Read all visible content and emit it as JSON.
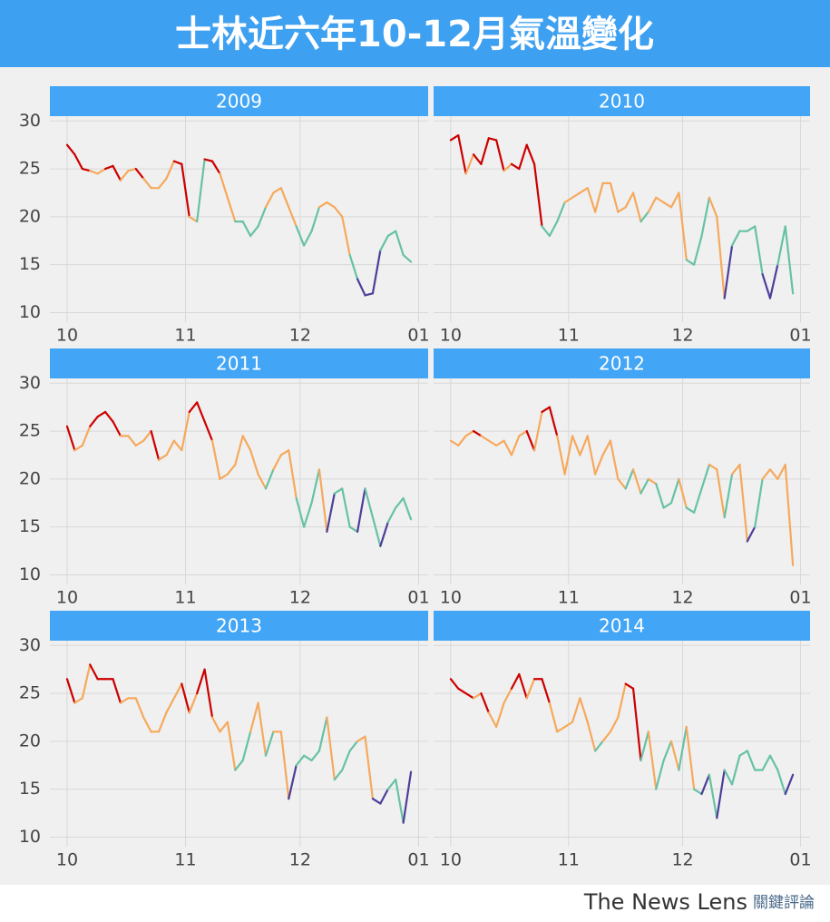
{
  "header": {
    "title": "士林近六年10-12月氣溫變化"
  },
  "footer": {
    "brand": "The News Lens",
    "brand_zh": "關鍵評論"
  },
  "chart_data": [
    {
      "type": "line",
      "title": "2009",
      "x": [
        0,
        2,
        4,
        6,
        8,
        10,
        12,
        14,
        16,
        18,
        20,
        22,
        24,
        26,
        28,
        30,
        32,
        34,
        36,
        38,
        40,
        42,
        44,
        46,
        48,
        50,
        52,
        54,
        56,
        58,
        60,
        62,
        64,
        66,
        68,
        70,
        72,
        74,
        76,
        78,
        80,
        82,
        84,
        86,
        88,
        90
      ],
      "values": [
        27.5,
        26.5,
        25,
        24.8,
        24.5,
        25,
        25.3,
        23.8,
        24.8,
        25,
        24,
        23,
        23,
        24,
        25.8,
        25.5,
        20,
        19.5,
        26,
        25.8,
        24.5,
        22,
        19.5,
        19.5,
        18,
        19,
        21,
        22.5,
        23,
        21,
        19,
        17,
        18.5,
        21,
        21.5,
        21,
        20,
        16,
        13.5,
        11.8,
        12,
        16.5,
        18,
        18.5,
        16,
        15.3
      ],
      "xlim": [
        -4.5,
        94.5
      ],
      "ylim": [
        9,
        30.5
      ],
      "xticks": [
        {
          "value": 0,
          "label": "10"
        },
        {
          "value": 31,
          "label": "11"
        },
        {
          "value": 61,
          "label": "12"
        },
        {
          "value": 92,
          "label": "01"
        }
      ],
      "yticks": [
        10,
        15,
        20,
        25,
        30
      ],
      "color_bands": {
        "thresholds": [
          15,
          20,
          25
        ],
        "colors": [
          "#4b3f9a",
          "#66c2a5",
          "#f6a95c",
          "#cc0000"
        ]
      }
    },
    {
      "type": "line",
      "title": "2010",
      "x": [
        0,
        2,
        4,
        6,
        8,
        10,
        12,
        14,
        16,
        18,
        20,
        22,
        24,
        26,
        28,
        30,
        32,
        34,
        36,
        38,
        40,
        42,
        44,
        46,
        48,
        50,
        52,
        54,
        56,
        58,
        60,
        62,
        64,
        66,
        68,
        70,
        72,
        74,
        76,
        78,
        80,
        82,
        84,
        86,
        88,
        90
      ],
      "values": [
        28,
        28.5,
        24.5,
        26.5,
        25.5,
        28.2,
        28,
        24.8,
        25.5,
        25,
        27.5,
        25.5,
        19,
        18,
        19.5,
        21.5,
        22,
        22.5,
        23,
        20.5,
        23.5,
        23.5,
        20.5,
        21,
        22.5,
        19.5,
        20.5,
        22,
        21.5,
        21,
        22.5,
        15.5,
        15,
        18,
        22,
        20,
        11.5,
        17,
        18.5,
        18.5,
        19,
        14,
        11.5,
        15,
        19,
        12
      ],
      "xlim": [
        -4.5,
        94.5
      ],
      "ylim": [
        9,
        30.5
      ],
      "xticks": [
        {
          "value": 0,
          "label": "10"
        },
        {
          "value": 31,
          "label": "11"
        },
        {
          "value": 61,
          "label": "12"
        },
        {
          "value": 92,
          "label": "01"
        }
      ],
      "yticks": [
        10,
        15,
        20,
        25,
        30
      ],
      "color_bands": {
        "thresholds": [
          15,
          20,
          25
        ],
        "colors": [
          "#4b3f9a",
          "#66c2a5",
          "#f6a95c",
          "#cc0000"
        ]
      }
    },
    {
      "type": "line",
      "title": "2011",
      "x": [
        0,
        2,
        4,
        6,
        8,
        10,
        12,
        14,
        16,
        18,
        20,
        22,
        24,
        26,
        28,
        30,
        32,
        34,
        36,
        38,
        40,
        42,
        44,
        46,
        48,
        50,
        52,
        54,
        56,
        58,
        60,
        62,
        64,
        66,
        68,
        70,
        72,
        74,
        76,
        78,
        80,
        82,
        84,
        86,
        88,
        90
      ],
      "values": [
        25.5,
        23,
        23.5,
        25.5,
        26.5,
        27,
        26,
        24.5,
        24.5,
        23.5,
        24,
        25,
        22,
        22.5,
        24,
        23,
        27,
        28,
        26,
        24,
        20,
        20.5,
        21.5,
        24.5,
        23,
        20.5,
        19,
        21,
        22.5,
        23,
        18,
        15,
        17.5,
        21,
        14.5,
        18.5,
        19,
        15,
        14.5,
        19,
        16,
        13,
        15.5,
        17,
        18,
        15.8
      ],
      "xlim": [
        -4.5,
        94.5
      ],
      "ylim": [
        9,
        30.5
      ],
      "xticks": [
        {
          "value": 0,
          "label": "10"
        },
        {
          "value": 31,
          "label": "11"
        },
        {
          "value": 61,
          "label": "12"
        },
        {
          "value": 92,
          "label": "01"
        }
      ],
      "yticks": [
        10,
        15,
        20,
        25,
        30
      ],
      "color_bands": {
        "thresholds": [
          15,
          20,
          25
        ],
        "colors": [
          "#4b3f9a",
          "#66c2a5",
          "#f6a95c",
          "#cc0000"
        ]
      }
    },
    {
      "type": "line",
      "title": "2012",
      "x": [
        0,
        2,
        4,
        6,
        8,
        10,
        12,
        14,
        16,
        18,
        20,
        22,
        24,
        26,
        28,
        30,
        32,
        34,
        36,
        38,
        40,
        42,
        44,
        46,
        48,
        50,
        52,
        54,
        56,
        58,
        60,
        62,
        64,
        66,
        68,
        70,
        72,
        74,
        76,
        78,
        80,
        82,
        84,
        86,
        88,
        90
      ],
      "values": [
        24,
        23.5,
        24.5,
        25,
        24.5,
        24,
        23.5,
        24,
        22.5,
        24.5,
        25,
        23,
        27,
        27.5,
        24.5,
        20.5,
        24.5,
        22.5,
        24.5,
        20.5,
        22.5,
        24,
        20,
        19,
        21,
        18.5,
        20,
        19.5,
        17,
        17.5,
        20,
        17,
        16.5,
        19,
        21.5,
        21,
        16,
        20.5,
        21.5,
        13.5,
        15,
        20,
        21,
        20,
        21.5,
        11
      ],
      "xlim": [
        -4.5,
        94.5
      ],
      "ylim": [
        9,
        30.5
      ],
      "xticks": [
        {
          "value": 0,
          "label": "10"
        },
        {
          "value": 31,
          "label": "11"
        },
        {
          "value": 61,
          "label": "12"
        },
        {
          "value": 92,
          "label": "01"
        }
      ],
      "yticks": [
        10,
        15,
        20,
        25,
        30
      ],
      "color_bands": {
        "thresholds": [
          15,
          20,
          25
        ],
        "colors": [
          "#4b3f9a",
          "#66c2a5",
          "#f6a95c",
          "#cc0000"
        ]
      }
    },
    {
      "type": "line",
      "title": "2013",
      "x": [
        0,
        2,
        4,
        6,
        8,
        10,
        12,
        14,
        16,
        18,
        20,
        22,
        24,
        26,
        28,
        30,
        32,
        34,
        36,
        38,
        40,
        42,
        44,
        46,
        48,
        50,
        52,
        54,
        56,
        58,
        60,
        62,
        64,
        66,
        68,
        70,
        72,
        74,
        76,
        78,
        80,
        82,
        84,
        86,
        88,
        90
      ],
      "values": [
        26.5,
        24,
        24.5,
        28,
        26.5,
        26.5,
        26.5,
        24,
        24.5,
        24.5,
        22.5,
        21,
        21,
        23,
        24.5,
        26,
        23,
        25,
        27.5,
        22.5,
        21,
        22,
        17,
        18,
        21,
        24,
        18.5,
        21,
        21,
        14,
        17.5,
        18.5,
        18,
        19,
        22.5,
        16,
        17,
        19,
        20,
        20.5,
        14,
        13.5,
        15,
        16,
        11.5,
        16.8
      ],
      "xlim": [
        -4.5,
        94.5
      ],
      "ylim": [
        9,
        30.5
      ],
      "xticks": [
        {
          "value": 0,
          "label": "10"
        },
        {
          "value": 31,
          "label": "11"
        },
        {
          "value": 61,
          "label": "12"
        },
        {
          "value": 92,
          "label": "01"
        }
      ],
      "yticks": [
        10,
        15,
        20,
        25,
        30
      ],
      "color_bands": {
        "thresholds": [
          15,
          20,
          25
        ],
        "colors": [
          "#4b3f9a",
          "#66c2a5",
          "#f6a95c",
          "#cc0000"
        ]
      }
    },
    {
      "type": "line",
      "title": "2014",
      "x": [
        0,
        2,
        4,
        6,
        8,
        10,
        12,
        14,
        16,
        18,
        20,
        22,
        24,
        26,
        28,
        30,
        32,
        34,
        36,
        38,
        40,
        42,
        44,
        46,
        48,
        50,
        52,
        54,
        56,
        58,
        60,
        62,
        64,
        66,
        68,
        70,
        72,
        74,
        76,
        78,
        80,
        82,
        84,
        86,
        88,
        90
      ],
      "values": [
        26.5,
        25.5,
        25,
        24.5,
        25,
        23,
        21.5,
        24,
        25.5,
        27,
        24.5,
        26.5,
        26.5,
        24,
        21,
        21.5,
        22,
        24.5,
        22,
        19,
        20,
        21,
        22.5,
        26,
        25.5,
        18,
        21,
        15,
        18,
        20,
        17,
        21.5,
        15,
        14.5,
        16.5,
        12,
        17,
        15.5,
        18.5,
        19,
        17,
        17,
        18.5,
        17,
        14.5,
        16.5
      ],
      "xlim": [
        -4.5,
        94.5
      ],
      "ylim": [
        9,
        30.5
      ],
      "xticks": [
        {
          "value": 0,
          "label": "10"
        },
        {
          "value": 31,
          "label": "11"
        },
        {
          "value": 61,
          "label": "12"
        },
        {
          "value": 92,
          "label": "01"
        }
      ],
      "yticks": [
        10,
        15,
        20,
        25,
        30
      ],
      "color_bands": {
        "thresholds": [
          15,
          20,
          25
        ],
        "colors": [
          "#4b3f9a",
          "#66c2a5",
          "#f6a95c",
          "#cc0000"
        ]
      }
    }
  ]
}
